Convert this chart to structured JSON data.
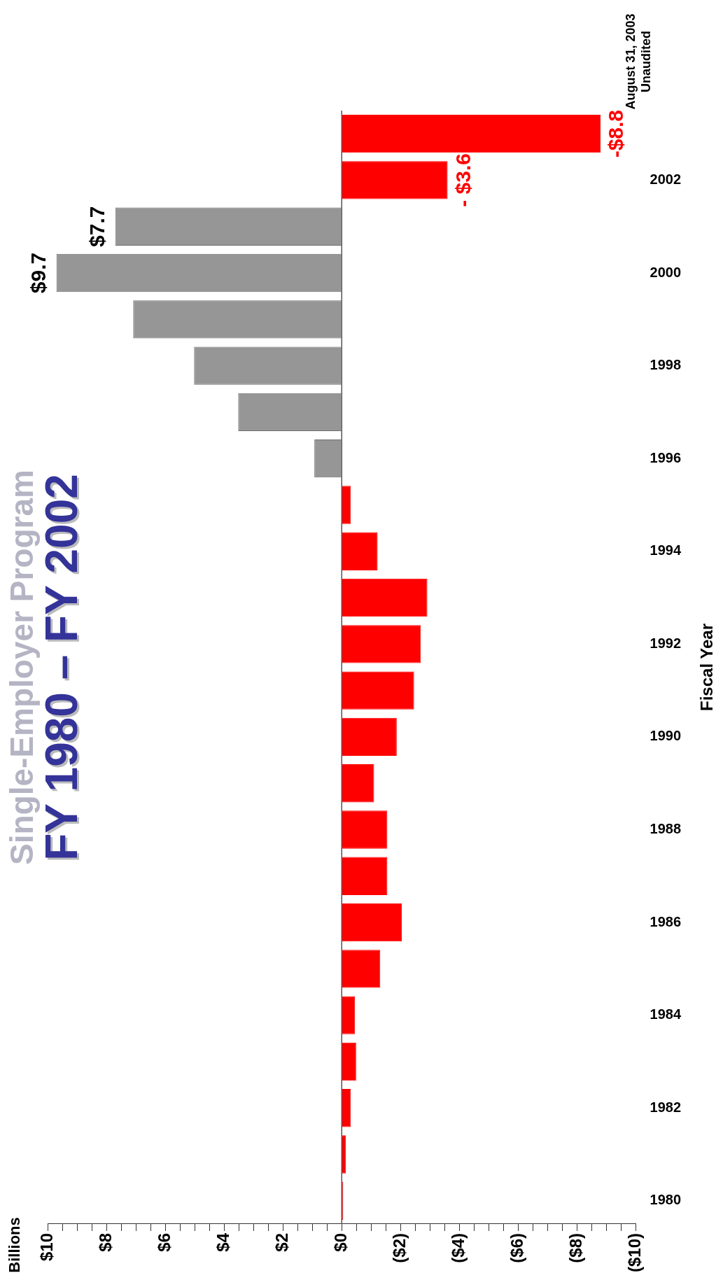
{
  "chart_data": {
    "type": "bar",
    "orientation": "horizontal",
    "title": "Single-Employer Program",
    "subtitle": "FY 1980 – FY 2002",
    "ylabel": "Fiscal Year",
    "categories": [
      null,
      "2002",
      null,
      "2000",
      null,
      "1998",
      null,
      "1996",
      null,
      "1994",
      null,
      "1992",
      null,
      "1990",
      null,
      "1988",
      null,
      "1986",
      null,
      "1984",
      null,
      "1982",
      null,
      "1980"
    ],
    "values": [
      -8.8,
      -3.6,
      7.7,
      9.7,
      7.09,
      5.02,
      3.52,
      0.93,
      -0.31,
      -1.22,
      -2.91,
      -2.69,
      -2.46,
      -1.87,
      -1.1,
      -1.55,
      -1.55,
      -2.04,
      -1.31,
      -0.45,
      -0.49,
      -0.31,
      -0.14,
      -0.05
    ],
    "colors": [
      "#ff0000",
      "#ff0000",
      "#969696",
      "#969696",
      "#969696",
      "#969696",
      "#969696",
      "#969696",
      "#ff0000",
      "#ff0000",
      "#ff0000",
      "#ff0000",
      "#ff0000",
      "#ff0000",
      "#ff0000",
      "#ff0000",
      "#ff0000",
      "#ff0000",
      "#ff0000",
      "#ff0000",
      "#ff0000",
      "#ff0000",
      "#ff0000",
      "#ff0000"
    ],
    "value_labels": [
      "-$8.8",
      "- $3.6",
      "$7.7",
      "$9.7",
      null,
      null,
      null,
      null,
      null,
      null,
      null,
      null,
      null,
      null,
      null,
      null,
      null,
      null,
      null,
      null,
      null,
      null,
      null,
      null
    ],
    "xlim": [
      10,
      -10
    ],
    "xticks": [
      {
        "value": 10,
        "label": "$10"
      },
      {
        "value": 9.5,
        "label": null
      },
      {
        "value": 9,
        "label": null
      },
      {
        "value": 8.5,
        "label": null
      },
      {
        "value": 8,
        "label": "$8"
      },
      {
        "value": 7.5,
        "label": null
      },
      {
        "value": 7,
        "label": null
      },
      {
        "value": 6.5,
        "label": null
      },
      {
        "value": 6,
        "label": "$6"
      },
      {
        "value": 5.5,
        "label": null
      },
      {
        "value": 5,
        "label": null
      },
      {
        "value": 4.5,
        "label": null
      },
      {
        "value": 4,
        "label": "$4"
      },
      {
        "value": 3.5,
        "label": null
      },
      {
        "value": 3,
        "label": null
      },
      {
        "value": 2.5,
        "label": null
      },
      {
        "value": 2,
        "label": "$2"
      },
      {
        "value": 1.5,
        "label": null
      },
      {
        "value": 1,
        "label": null
      },
      {
        "value": 0.5,
        "label": null
      },
      {
        "value": 0,
        "label": "$0"
      },
      {
        "value": -0.5,
        "label": null
      },
      {
        "value": -1,
        "label": null
      },
      {
        "value": -1.5,
        "label": null
      },
      {
        "value": -2,
        "label": "($2)"
      },
      {
        "value": -2.5,
        "label": null
      },
      {
        "value": -3,
        "label": null
      },
      {
        "value": -3.5,
        "label": null
      },
      {
        "value": -4,
        "label": "($4)"
      },
      {
        "value": -4.5,
        "label": null
      },
      {
        "value": -5,
        "label": null
      },
      {
        "value": -5.5,
        "label": null
      },
      {
        "value": -6,
        "label": "($6)"
      },
      {
        "value": -6.5,
        "label": null
      },
      {
        "value": -7,
        "label": null
      },
      {
        "value": -7.5,
        "label": null
      },
      {
        "value": -8,
        "label": "($8)"
      },
      {
        "value": -8.5,
        "label": null
      },
      {
        "value": -9,
        "label": null
      },
      {
        "value": -9.5,
        "label": null
      },
      {
        "value": -10,
        "label": "($10)"
      }
    ],
    "annotations": [
      "Billions",
      "August 31, 2003",
      "Unaudited"
    ]
  }
}
